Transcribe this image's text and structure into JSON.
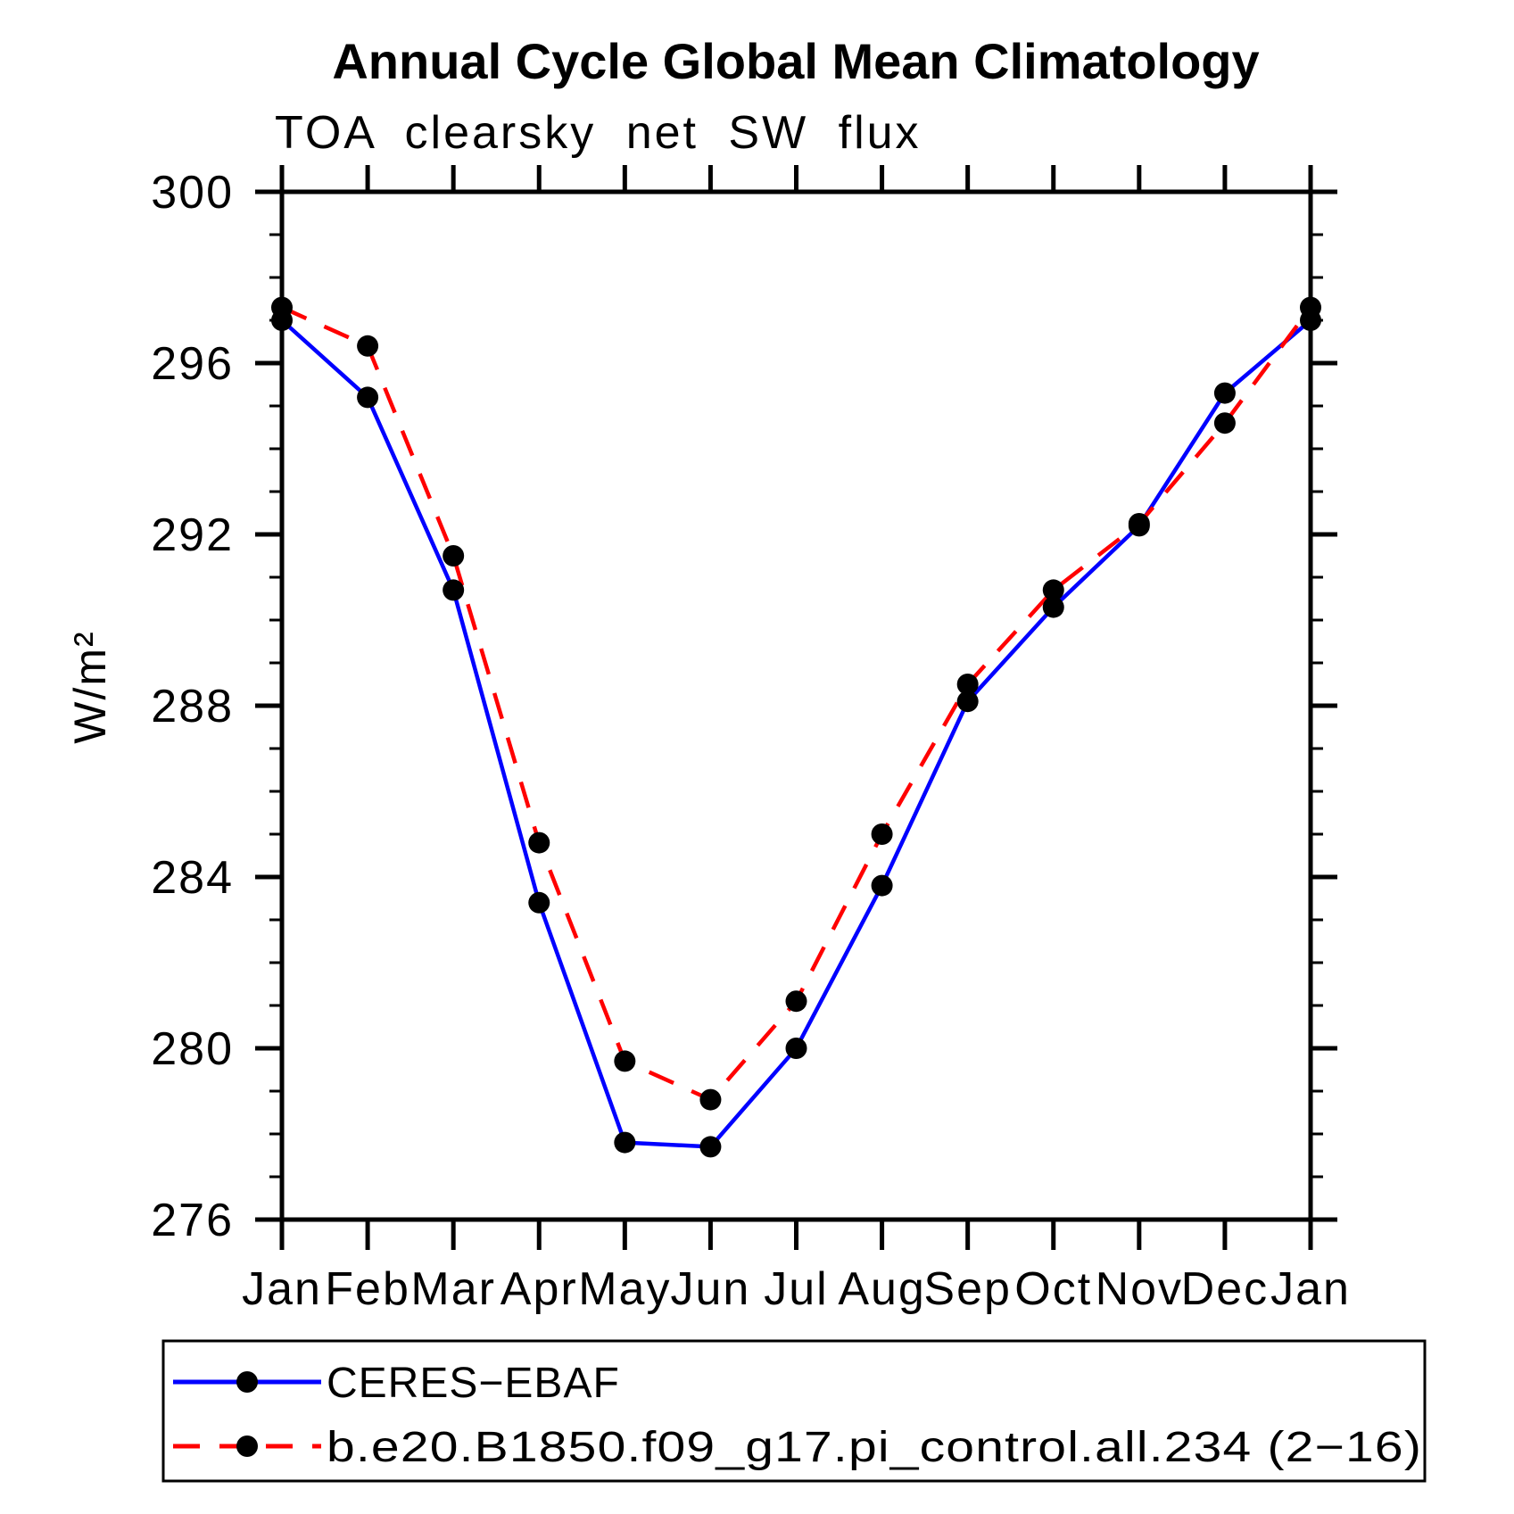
{
  "chart_data": {
    "type": "line",
    "title": "Annual Cycle Global Mean Climatology",
    "subtitle": "TOA clearsky net SW flux",
    "ylabel": "W/m²",
    "xlabel": "",
    "categories": [
      "Jan",
      "Feb",
      "Mar",
      "Apr",
      "May",
      "Jun",
      "Jul",
      "Aug",
      "Sep",
      "Oct",
      "Nov",
      "Dec",
      "Jan"
    ],
    "series": [
      {
        "name": "CERES−EBAF",
        "style": "solid",
        "color": "#0000ff",
        "marker": "circle",
        "marker_color": "#000000",
        "values": [
          297.0,
          295.2,
          290.7,
          283.4,
          277.8,
          277.7,
          280.0,
          283.8,
          288.1,
          290.3,
          292.2,
          295.3,
          297.0
        ]
      },
      {
        "name": "b.e20.B1850.f09_g17.pi_control.all.234 (2−16)",
        "style": "dashed",
        "color": "#ff0000",
        "marker": "circle",
        "marker_color": "#000000",
        "values": [
          297.3,
          296.4,
          291.5,
          284.8,
          279.7,
          278.8,
          281.1,
          285.0,
          288.5,
          290.7,
          292.25,
          294.6,
          297.3
        ]
      }
    ],
    "ylim": [
      276,
      300
    ],
    "yticks_major": [
      300,
      296,
      292,
      288,
      284,
      280,
      276
    ],
    "ytick_minor_interval": 1,
    "grid": "off",
    "legend_position": "below-axis-boxed",
    "axis_color": "#000000",
    "background_color": "#ffffff"
  }
}
